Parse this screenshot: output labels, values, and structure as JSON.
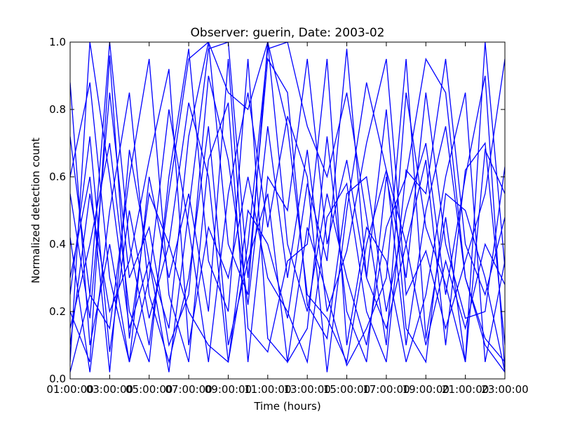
{
  "chart_data": {
    "type": "line",
    "title": "Observer: guerin, Date: 2003-02",
    "xlabel": "Time (hours)",
    "ylabel": "Normalized detection count",
    "xlim": [
      1,
      23
    ],
    "ylim": [
      0.0,
      1.0
    ],
    "x_tick_values": [
      1,
      3,
      5,
      7,
      9,
      11,
      13,
      15,
      17,
      19,
      21,
      23
    ],
    "x_tick_labels": [
      "01:00:00",
      "03:00:00",
      "05:00:00",
      "07:00:00",
      "09:00:00",
      "11:00:00",
      "13:00:00",
      "15:00:00",
      "17:00:00",
      "19:00:00",
      "21:00:00",
      "23:00:00"
    ],
    "y_tick_values": [
      0.0,
      0.2,
      0.4,
      0.6,
      0.8,
      1.0
    ],
    "y_tick_labels": [
      "0.0",
      "0.2",
      "0.4",
      "0.6",
      "0.8",
      "1.0"
    ],
    "grid": false,
    "line_color": "#0000ff",
    "x": [
      1,
      2,
      3,
      4,
      5,
      6,
      7,
      8,
      9,
      10,
      11,
      12,
      13,
      14,
      15,
      16,
      17,
      18,
      19,
      20,
      21,
      22,
      23
    ],
    "series": [
      {
        "values": [
          0.72,
          0.25,
          1.0,
          0.4,
          0.1,
          0.55,
          0.95,
          1.0,
          0.85,
          0.8,
          1.0,
          0.4,
          0.2,
          0.55,
          0.3,
          0.1,
          0.45,
          0.6,
          0.95,
          0.85,
          0.3,
          0.1,
          0.02
        ]
      },
      {
        "values": [
          0.05,
          1.0,
          0.6,
          0.15,
          0.35,
          0.02,
          0.5,
          0.98,
          1.0,
          0.3,
          0.95,
          0.85,
          0.22,
          0.12,
          0.55,
          0.6,
          0.2,
          0.5,
          0.7,
          0.25,
          0.6,
          0.9,
          0.02
        ]
      },
      {
        "values": [
          0.3,
          0.6,
          0.02,
          0.68,
          0.35,
          0.15,
          0.72,
          1.0,
          0.4,
          0.25,
          1.0,
          0.75,
          0.25,
          0.18,
          0.05,
          0.4,
          0.62,
          0.1,
          0.5,
          0.75,
          0.3,
          0.12,
          0.05
        ]
      },
      {
        "values": [
          0.2,
          0.05,
          0.96,
          0.12,
          0.55,
          0.4,
          0.2,
          0.1,
          0.05,
          0.4,
          0.98,
          1.0,
          0.75,
          0.6,
          0.85,
          0.48,
          0.1,
          0.85,
          0.45,
          0.28,
          0.05,
          1.0,
          0.33
        ]
      },
      {
        "values": [
          0.02,
          0.25,
          0.15,
          0.6,
          0.95,
          0.25,
          0.05,
          0.65,
          0.82,
          0.05,
          0.6,
          0.5,
          0.95,
          0.4,
          0.65,
          0.3,
          0.8,
          0.15,
          0.05,
          0.55,
          0.5,
          0.3,
          0.02
        ]
      },
      {
        "values": [
          0.6,
          0.88,
          0.3,
          0.05,
          0.3,
          0.8,
          0.45,
          0.05,
          0.55,
          0.85,
          0.45,
          0.78,
          0.6,
          0.02,
          0.5,
          0.88,
          0.62,
          0.4,
          0.65,
          0.1,
          0.62,
          0.7,
          0.1
        ]
      },
      {
        "values": [
          0.15,
          0.4,
          0.7,
          0.2,
          0.05,
          0.6,
          0.98,
          0.35,
          0.2,
          0.95,
          0.12,
          0.05,
          0.45,
          0.25,
          0.04,
          0.15,
          0.3,
          0.95,
          0.12,
          0.48,
          0.05,
          0.68,
          0.55
        ]
      },
      {
        "values": [
          0.42,
          0.02,
          0.5,
          0.85,
          0.25,
          0.05,
          0.3,
          0.75,
          0.1,
          0.35,
          0.55,
          0.05,
          0.15,
          0.72,
          0.2,
          0.05,
          0.6,
          0.3,
          0.85,
          0.4,
          0.18,
          0.2,
          0.63
        ]
      },
      {
        "values": [
          0.1,
          0.55,
          0.2,
          0.35,
          0.65,
          0.92,
          0.1,
          0.45,
          0.3,
          0.6,
          0.3,
          0.2,
          0.05,
          0.48,
          0.58,
          0.2,
          0.05,
          0.62,
          0.55,
          0.95,
          0.4,
          0.25,
          0.48
        ]
      },
      {
        "values": [
          0.88,
          0.1,
          0.4,
          0.05,
          0.6,
          0.3,
          0.55,
          0.2,
          0.95,
          0.15,
          0.08,
          0.35,
          0.4,
          0.95,
          0.1,
          0.45,
          0.35,
          0.05,
          0.25,
          0.6,
          0.85,
          0.05,
          0.35
        ]
      },
      {
        "values": [
          0.25,
          0.72,
          0.08,
          0.5,
          0.18,
          0.4,
          0.82,
          0.6,
          0.05,
          0.5,
          0.4,
          0.18,
          0.58,
          0.35,
          0.98,
          0.3,
          0.15,
          0.4,
          0.1,
          0.35,
          0.15,
          0.4,
          0.28
        ]
      },
      {
        "values": [
          0.55,
          0.18,
          0.85,
          0.3,
          0.45,
          0.1,
          0.25,
          0.9,
          0.65,
          0.22,
          0.75,
          0.3,
          0.68,
          0.2,
          0.38,
          0.7,
          0.95,
          0.25,
          0.38,
          0.15,
          0.35,
          0.55,
          0.95
        ]
      }
    ]
  }
}
